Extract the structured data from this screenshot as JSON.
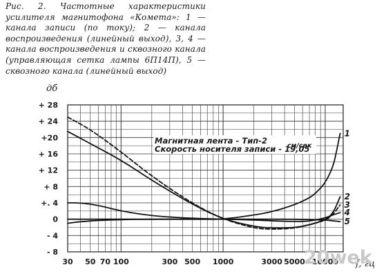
{
  "caption": "Рис. 2. Частотные характеристики усилителя магнитофона «Комета»: 1 — канала записи (по току); 2 — канала воспроизведения (линейный выход), 3, 4 — канала воспроизведения и сквозного канала (управляющая сетка лампы 6П14П), 5 — сквозного канала (линейный выход)",
  "chart_data": {
    "type": "line",
    "ylabel": "дб",
    "xlabel": "f, гц",
    "x_scale": "log",
    "xlim": [
      30,
      15000
    ],
    "ylim": [
      -8,
      28
    ],
    "grid": true,
    "y_ticks": [
      {
        "value": 28,
        "label": "+ 28"
      },
      {
        "value": 24,
        "label": "+ 24"
      },
      {
        "value": 20,
        "label": "+20"
      },
      {
        "value": 16,
        "label": "+ 16"
      },
      {
        "value": 12,
        "label": "+ 12"
      },
      {
        "value": 8,
        "label": "+ 8"
      },
      {
        "value": 4,
        "label": "+. 4"
      },
      {
        "value": 0,
        "label": "0"
      },
      {
        "value": -4,
        "label": "- 4"
      },
      {
        "value": -8,
        "label": "- 8"
      }
    ],
    "x_ticks": [
      {
        "value": 30,
        "label": "30"
      },
      {
        "value": 50,
        "label": "50"
      },
      {
        "value": 70,
        "label": "70"
      },
      {
        "value": 100,
        "label": "100"
      },
      {
        "value": 300,
        "label": "300"
      },
      {
        "value": 500,
        "label": "500"
      },
      {
        "value": 1000,
        "label": "1000"
      },
      {
        "value": 3000,
        "label": "3000"
      },
      {
        "value": 5000,
        "label": "5000"
      },
      {
        "value": 10000,
        "label": "10000"
      }
    ],
    "annotation": [
      "Магнитная лента - Тип-2",
      "Скорость носителя записи - 19,05"
    ],
    "annotation_unit": "см/сек",
    "series": [
      {
        "label": "1",
        "dash": "solid",
        "x": [
          30,
          50,
          100,
          200,
          500,
          700,
          1000,
          2000,
          3000,
          5000,
          7000,
          8000,
          10000,
          12000,
          13000,
          14000
        ],
        "y": [
          0,
          0,
          0,
          0,
          0,
          0,
          0,
          1,
          1.8,
          3.5,
          5.2,
          6.3,
          8.8,
          13,
          17,
          21
        ]
      },
      {
        "label": "2",
        "dash": "solid",
        "x": [
          30,
          50,
          100,
          200,
          500,
          1000,
          2000,
          3000,
          5000,
          7000,
          10000,
          12000,
          14000
        ],
        "y": [
          21.5,
          18.5,
          14.5,
          9.5,
          3.6,
          0,
          -1.8,
          -2.2,
          -2.1,
          -1.4,
          -0.2,
          1.5,
          5.5
        ]
      },
      {
        "label": "3",
        "dash": "dashed",
        "x": [
          30,
          50,
          100,
          200,
          500,
          1000,
          2000,
          3000,
          5000,
          7000,
          10000,
          12000,
          14000
        ],
        "y": [
          25,
          22,
          16.5,
          10.5,
          3.8,
          0,
          -2.2,
          -2.5,
          -2.2,
          -1.4,
          -0.3,
          1.2,
          3.5
        ]
      },
      {
        "label": "4",
        "dash": "solid",
        "x": [
          30,
          40,
          60,
          100,
          200,
          500,
          1000,
          2000,
          3000,
          5000,
          7000,
          10000,
          12000,
          14000
        ],
        "y": [
          4,
          4,
          3.4,
          2,
          0.8,
          0.2,
          0,
          -0.2,
          -0.4,
          -0.6,
          -0.5,
          0.3,
          1.1,
          1.6
        ]
      },
      {
        "label": "5",
        "dash": "solid",
        "x": [
          30,
          40,
          60,
          100,
          200,
          500,
          1000,
          2000,
          5000,
          10000,
          12000,
          14000
        ],
        "y": [
          -1,
          -0.6,
          -0.3,
          -0.1,
          0,
          0,
          0,
          0,
          0,
          -0.2,
          -0.4,
          -0.6
        ]
      }
    ]
  },
  "watermark": "20wek"
}
